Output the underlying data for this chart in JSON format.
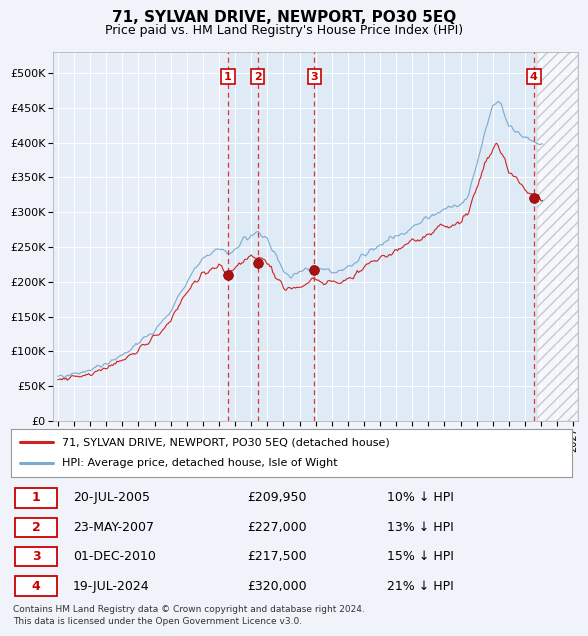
{
  "title": "71, SYLVAN DRIVE, NEWPORT, PO30 5EQ",
  "subtitle": "Price paid vs. HM Land Registry's House Price Index (HPI)",
  "title_fontsize": 11,
  "subtitle_fontsize": 9,
  "bg_color": "#f0f4fa",
  "plot_bg_color": "#e8eef8",
  "grid_color": "#ffffff",
  "hpi_line_color": "#7aaad0",
  "price_line_color": "#cc2222",
  "yticks": [
    0,
    50000,
    100000,
    150000,
    200000,
    250000,
    300000,
    350000,
    400000,
    450000,
    500000
  ],
  "xlim_start": 1994.7,
  "xlim_end": 2027.3,
  "ylim": [
    0,
    530000
  ],
  "hatch_start": 2024.75,
  "transactions": [
    {
      "label": "1",
      "date": "20-JUL-2005",
      "price": 209950,
      "pct": "10%",
      "x": 2005.55
    },
    {
      "label": "2",
      "date": "23-MAY-2007",
      "price": 227000,
      "pct": "13%",
      "x": 2007.39
    },
    {
      "label": "3",
      "date": "01-DEC-2010",
      "price": 217500,
      "pct": "15%",
      "x": 2010.92
    },
    {
      "label": "4",
      "date": "19-JUL-2024",
      "price": 320000,
      "pct": "21%",
      "x": 2024.55
    }
  ],
  "legend_entries": [
    {
      "label": "71, SYLVAN DRIVE, NEWPORT, PO30 5EQ (detached house)",
      "color": "#cc2222"
    },
    {
      "label": "HPI: Average price, detached house, Isle of Wight",
      "color": "#7aaad0"
    }
  ],
  "footer": "Contains HM Land Registry data © Crown copyright and database right 2024.\nThis data is licensed under the Open Government Licence v3.0."
}
